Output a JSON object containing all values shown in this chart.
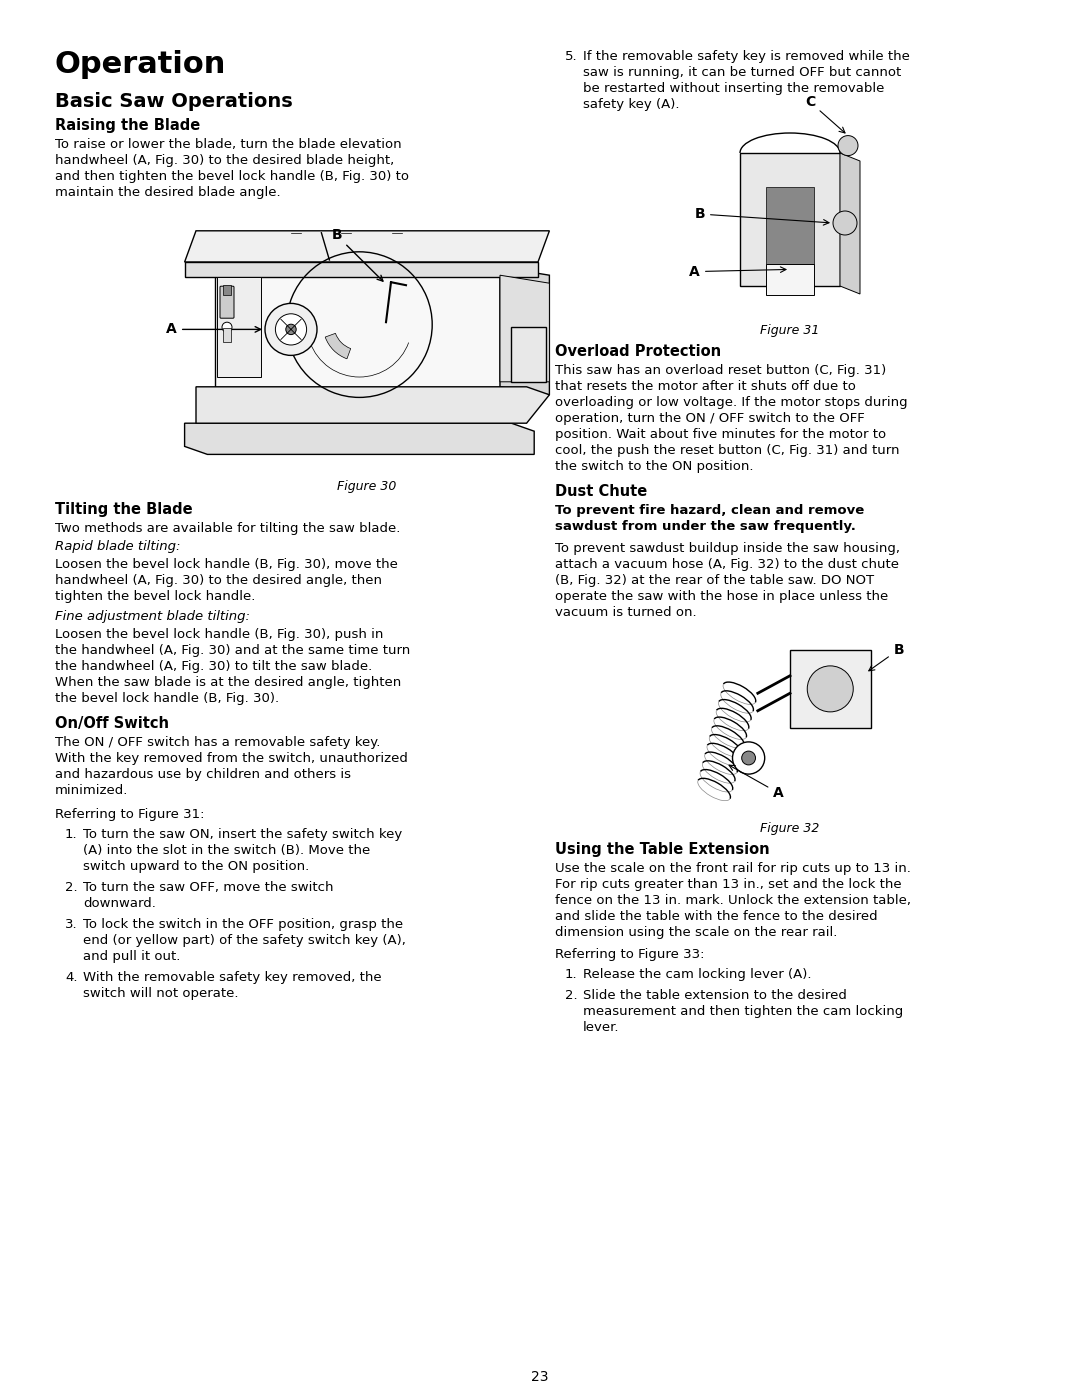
{
  "page_number": "23",
  "bg": "#ffffff",
  "heading1": "Operation",
  "heading2": "Basic Saw Operations",
  "s1_title": "Raising the Blade",
  "s1_body1": "To raise or lower the blade, turn the ",
  "s1_body1i": "blade elevation",
  "s1_body2": "handwheel",
  "s1_body2a": " (A, Fig. 30) to the desired blade height,",
  "s1_body3": "and then tighten the ",
  "s1_body3i": "bevel lock handle",
  "s1_body3a": " (B, Fig. 30) to",
  "s1_body4": "maintain the desired blade angle.",
  "fig30_cap": "Figure 30",
  "s2_title": "Tilting the Blade",
  "s2_body": "Two methods are available for tilting the saw blade.",
  "s2_sub1": "Rapid blade tilting:",
  "s2_sub1_body": "Loosen the bevel lock handle (B, Fig. 30), move the\nhandwheel (A, Fig. 30) to the desired angle, then\ntighten the bevel lock handle.",
  "s2_sub2": "Fine adjustment blade tilting:",
  "s2_sub2_body": "Loosen the bevel lock handle (B, Fig. 30), push in\nthe handwheel (A, Fig. 30) and at the same time turn\nthe handwheel (A, Fig. 30) to tilt the saw blade.\nWhen the saw blade is at the desired angle, tighten\nthe bevel lock handle (B, Fig. 30).",
  "s3_title": "On/Off Switch",
  "s3_body": "The ON / OFF switch has a removable safety key.\nWith the key removed from the switch, unauthorized\nand hazardous use by children and others is\nminimized.",
  "s3_ref": "Referring to Figure 31:",
  "s3_list": [
    "To turn the saw ON, insert the safety switch key\n(A) into the slot in the switch (B). Move the\nswitch upward to the ON position.",
    "To turn the saw OFF, move the switch\ndownward.",
    "To lock the switch in the OFF position, grasp the\nend (or yellow part) of the safety switch key (A),\nand pull it out.",
    "With the removable safety key removed, the\nswitch will not operate."
  ],
  "r_item5": "If the removable safety key is removed while the\nsaw is running, it can be turned OFF but cannot\nbe restarted without inserting the removable\nsafety key (A).",
  "fig31_cap": "Figure 31",
  "s4_title": "Overload Protection",
  "s4_body": "This saw has an overload reset button (C, Fig. 31)\nthat resets the motor after it shuts off due to\noverloading or low voltage. If the motor stops during\noperation, turn the ON / OFF switch to the OFF\nposition. Wait about five minutes for the motor to\ncool, the push the reset button (C, Fig. 31) and turn\nthe switch to the ON position.",
  "s5_title": "Dust Chute",
  "s5_warn": "To prevent fire hazard, clean and remove\nsawdust from under the saw frequently.",
  "s5_body": "To prevent sawdust buildup inside the saw housing,\nattach a vacuum hose (A, Fig. 32) to the dust chute\n(B, Fig. 32) at the rear of the table saw. DO NOT\noperate the saw with the hose in place unless the\nvacuum is turned on.",
  "fig32_cap": "Figure 32",
  "s6_title": "Using the Table Extension",
  "s6_body": "Use the scale on the front rail for rip cuts up to 13 in.\nFor rip cuts greater than 13 in., set and the lock the\nfence on the 13 in. mark. Unlock the extension table,\nand slide the table with the fence to the desired\ndimension using the scale on the rear rail.",
  "s6_ref": "Referring to Figure 33:",
  "s6_list": [
    "Release the cam locking lever (A).",
    "Slide the table extension to the desired\nmeasurement and then tighten the cam locking\nlever."
  ]
}
